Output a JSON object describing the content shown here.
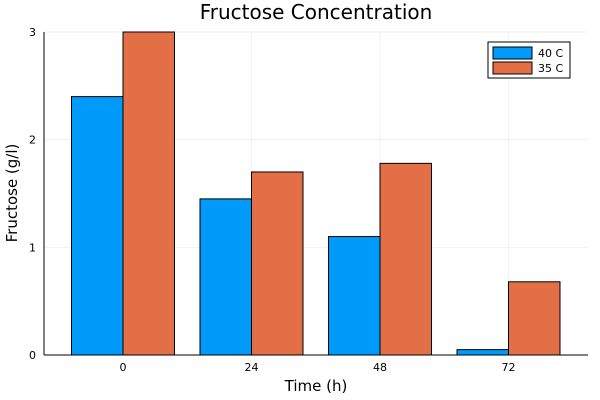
{
  "chart_data": {
    "type": "bar",
    "title": "Fructose Concentration",
    "xlabel": "Time (h)",
    "ylabel": "Fructose (g/l)",
    "categories": [
      "0",
      "24",
      "48",
      "72"
    ],
    "series": [
      {
        "name": "40 C",
        "values": [
          2.4,
          1.45,
          1.1,
          0.05
        ],
        "color": "#009AFA"
      },
      {
        "name": "35 C",
        "values": [
          3.0,
          1.7,
          1.78,
          0.68
        ],
        "color": "#E36F47"
      }
    ],
    "ylim": [
      0,
      3
    ],
    "yticks": [
      0,
      1,
      2,
      3
    ],
    "grid": true,
    "legend_position": "top-right"
  }
}
